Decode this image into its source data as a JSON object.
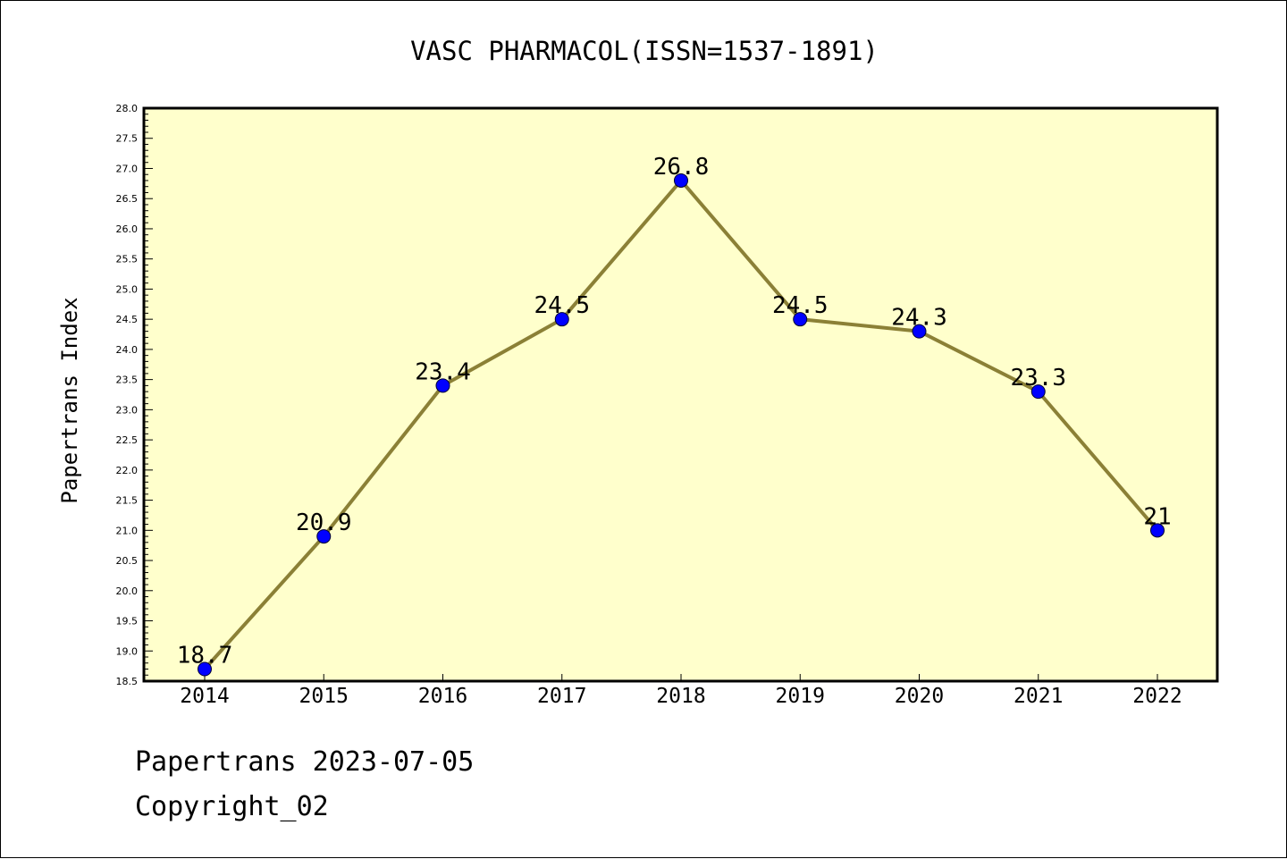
{
  "chart_data": {
    "type": "line",
    "title": "VASC PHARMACOL(ISSN=1537-1891)",
    "xlabel": "",
    "ylabel": "Papertrans Index",
    "categories": [
      "2014",
      "2015",
      "2016",
      "2017",
      "2018",
      "2019",
      "2020",
      "2021",
      "2022"
    ],
    "series": [
      {
        "values": [
          18.7,
          20.9,
          23.4,
          24.5,
          26.8,
          24.5,
          24.3,
          23.3,
          21.0
        ]
      }
    ],
    "data_labels": [
      "18.7",
      "20.9",
      "23.4",
      "24.5",
      "26.8",
      "24.5",
      "24.3",
      "23.3",
      "21"
    ],
    "ylim": [
      18.5,
      28.0
    ],
    "ytick_step": 0.5,
    "ytick_labels": [
      "18.5",
      "19.0",
      "19.5",
      "20.0",
      "20.5",
      "21.0",
      "21.5",
      "22.0",
      "22.5",
      "23.0",
      "23.5",
      "24.0",
      "24.5",
      "25.0",
      "25.5",
      "26.0",
      "26.5",
      "27.0",
      "27.5",
      "28.0"
    ],
    "grid": false,
    "legend": "none"
  },
  "footer": {
    "date_line": "Papertrans 2023-07-05",
    "copyright_line": "Copyright_02"
  },
  "colors": {
    "plot_background": "#ffffcc",
    "line": "#8b8036",
    "marker": "#0000ff",
    "axis": "#000000"
  }
}
